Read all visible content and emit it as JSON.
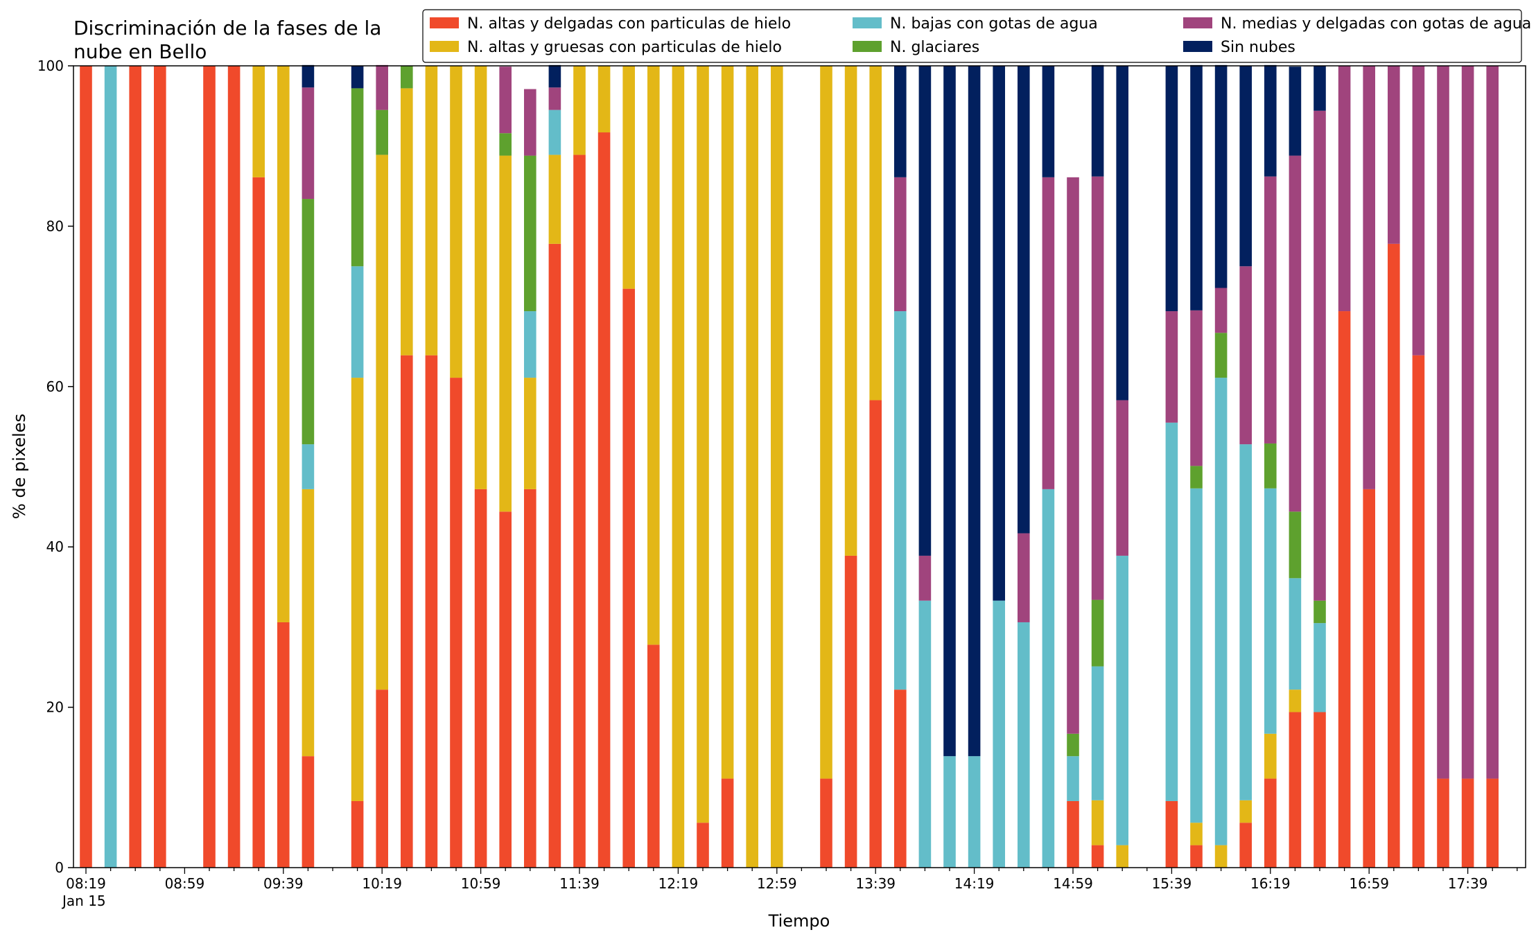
{
  "chart_data": {
    "type": "bar",
    "stacked": true,
    "title": "Discriminación de la fases de la nube en Bello",
    "title_lines": [
      "Discriminación de la fases de la",
      "nube en Bello"
    ],
    "xlabel": "Tiempo",
    "ylabel": "% de pixeles",
    "ylim": [
      0,
      100
    ],
    "yticks": [
      0,
      20,
      40,
      60,
      80,
      100
    ],
    "grid": false,
    "legend_position": "top-right",
    "x_start": "08:19",
    "x_interval_minutes": 10,
    "x_date_label": "Jan 15",
    "xtick_labels": [
      "08:19",
      "08:59",
      "09:39",
      "10:19",
      "10:59",
      "11:39",
      "12:19",
      "12:59",
      "13:39",
      "14:19",
      "14:59",
      "15:39",
      "16:19",
      "16:59",
      "17:39"
    ],
    "x": [
      "08:19",
      "08:29",
      "08:39",
      "08:49",
      "08:59",
      "09:09",
      "09:19",
      "09:29",
      "09:39",
      "09:49",
      "09:59",
      "10:09",
      "10:19",
      "10:29",
      "10:39",
      "10:49",
      "10:59",
      "11:09",
      "11:19",
      "11:29",
      "11:39",
      "11:49",
      "11:59",
      "12:09",
      "12:19",
      "12:29",
      "12:39",
      "12:49",
      "12:59",
      "13:09",
      "13:19",
      "13:29",
      "13:39",
      "13:49",
      "13:59",
      "14:09",
      "14:19",
      "14:29",
      "14:39",
      "14:49",
      "14:59",
      "15:09",
      "15:19",
      "15:29",
      "15:39",
      "15:49",
      "15:59",
      "16:09",
      "16:19",
      "16:29",
      "16:39",
      "16:49",
      "16:59",
      "17:09",
      "17:19",
      "17:29",
      "17:39",
      "17:49"
    ],
    "series": [
      {
        "name": "N. altas y delgadas con particulas de hielo",
        "color": "#f04a2b",
        "values": [
          100,
          0,
          100,
          100,
          0,
          100,
          100,
          86.1,
          30.6,
          13.9,
          0,
          8.3,
          22.2,
          63.9,
          63.9,
          61.1,
          47.2,
          44.4,
          47.2,
          77.8,
          88.9,
          91.7,
          72.2,
          27.8,
          0,
          5.6,
          11.1,
          0,
          0,
          0,
          11.1,
          38.9,
          58.3,
          22.2,
          0,
          0,
          0,
          0,
          0,
          0,
          8.3,
          2.8,
          0,
          0,
          8.3,
          2.8,
          0,
          5.6,
          11.1,
          19.4,
          19.4,
          69.4,
          47.2,
          77.8,
          63.9,
          11.1,
          11.1,
          11.1
        ]
      },
      {
        "name": "N. altas y gruesas con particulas de hielo",
        "color": "#e3b717",
        "values": [
          0,
          0,
          0,
          0,
          0,
          0,
          0,
          13.9,
          69.4,
          33.3,
          0,
          52.8,
          66.7,
          33.3,
          36.1,
          38.9,
          52.8,
          44.4,
          13.9,
          11.1,
          11.1,
          8.3,
          27.8,
          72.2,
          100,
          94.4,
          88.9,
          100,
          100,
          0,
          88.9,
          61.1,
          41.7,
          0,
          0,
          0,
          0,
          0,
          0,
          0,
          0,
          5.6,
          2.8,
          0,
          0,
          2.8,
          2.8,
          2.8,
          5.6,
          2.8,
          0,
          0,
          0,
          0,
          0,
          0,
          0,
          0
        ]
      },
      {
        "name": "N. bajas con gotas de agua",
        "color": "#63bdc9",
        "values": [
          0,
          100,
          0,
          0,
          0,
          0,
          0,
          0,
          0,
          5.6,
          0,
          13.9,
          0,
          0,
          0,
          0,
          0,
          0,
          8.3,
          5.6,
          0,
          0,
          0,
          0,
          0,
          0,
          0,
          0,
          0,
          0,
          0,
          0,
          0,
          47.2,
          33.3,
          13.9,
          13.9,
          33.3,
          30.6,
          47.2,
          5.6,
          16.7,
          36.1,
          0,
          47.2,
          41.7,
          58.3,
          44.4,
          30.6,
          13.9,
          11.1,
          0,
          0,
          0,
          0,
          0,
          0,
          0
        ]
      },
      {
        "name": "N. glaciares",
        "color": "#5ea12e",
        "values": [
          0,
          0,
          0,
          0,
          0,
          0,
          0,
          0,
          0,
          30.6,
          0,
          22.2,
          5.6,
          2.8,
          0,
          0,
          0,
          2.8,
          19.4,
          0,
          0,
          0,
          0,
          0,
          0,
          0,
          0,
          0,
          0,
          0,
          0,
          0,
          0,
          0,
          0,
          0,
          0,
          0,
          0,
          0,
          2.8,
          8.3,
          0,
          0,
          0,
          2.8,
          5.6,
          0,
          5.6,
          8.3,
          2.8,
          0,
          0,
          0,
          0,
          0,
          0,
          0
        ]
      },
      {
        "name": "N. medias y delgadas con gotas de agua",
        "color": "#a0447d",
        "values": [
          0,
          0,
          0,
          0,
          0,
          0,
          0,
          0,
          0,
          13.9,
          0,
          0,
          5.6,
          0,
          0,
          0,
          0,
          8.3,
          8.3,
          2.8,
          0,
          0,
          0,
          0,
          0,
          0,
          0,
          0,
          0,
          0,
          0,
          0,
          0,
          16.7,
          5.6,
          0,
          0,
          0,
          11.1,
          38.9,
          69.4,
          52.8,
          19.4,
          0,
          13.9,
          19.4,
          5.6,
          22.2,
          33.3,
          44.4,
          61.1,
          30.6,
          52.8,
          22.2,
          36.1,
          88.9,
          88.9,
          88.9
        ]
      },
      {
        "name": "Sin nubes",
        "color": "#02205e",
        "values": [
          0,
          0,
          0,
          0,
          0,
          0,
          0,
          0,
          0,
          2.8,
          0,
          2.8,
          0,
          0,
          0,
          0,
          0,
          0,
          0,
          2.8,
          0,
          0,
          0,
          0,
          0,
          0,
          0,
          0,
          0,
          0,
          0,
          0,
          0,
          13.9,
          61.1,
          86.1,
          86.1,
          66.7,
          58.3,
          13.9,
          0,
          13.9,
          41.7,
          0,
          30.6,
          30.6,
          27.8,
          25.0,
          13.9,
          11.1,
          5.6,
          0,
          0,
          0,
          0,
          0,
          0,
          0
        ]
      }
    ]
  }
}
